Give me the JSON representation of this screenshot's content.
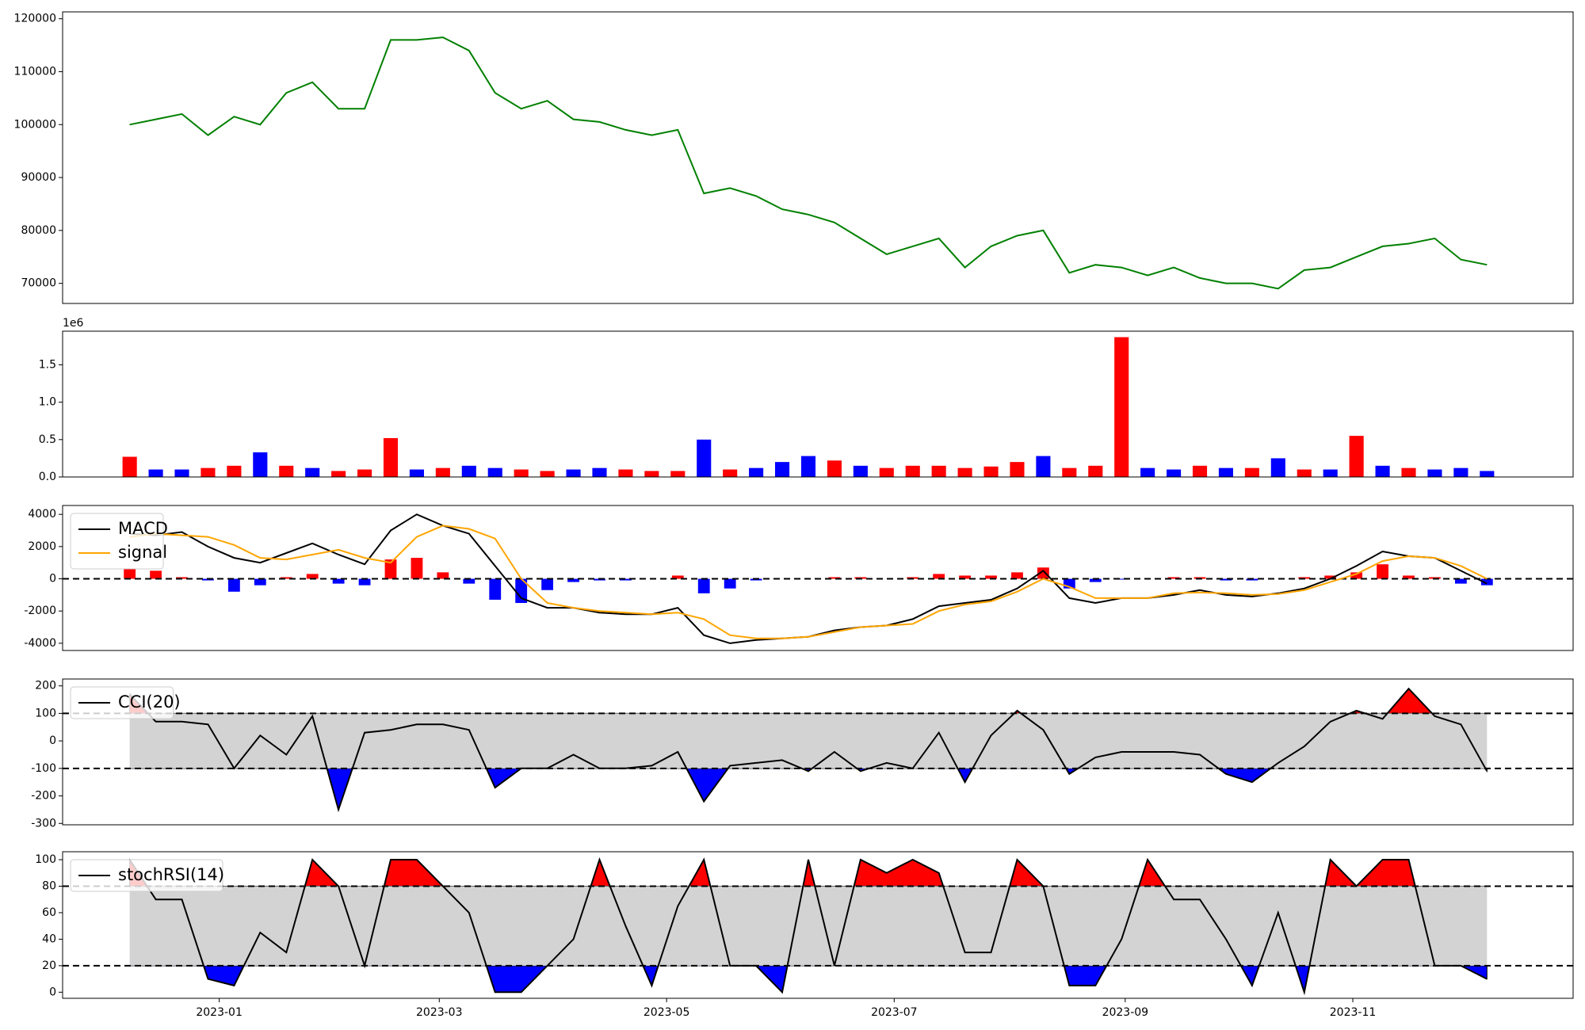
{
  "chart_data": [
    {
      "type": "line",
      "color": "#008000",
      "values": [
        100000,
        101000,
        102000,
        98000,
        101500,
        100000,
        106000,
        108000,
        103000,
        103000,
        116000,
        116000,
        116500,
        114000,
        106000,
        103000,
        104500,
        101000,
        100500,
        99000,
        98000,
        99000,
        87000,
        88000,
        86500,
        84000,
        83000,
        81500,
        78500,
        75500,
        77000,
        78500,
        73000,
        77000,
        79000,
        80000,
        72000,
        73500,
        73000,
        71500,
        73000,
        71000,
        70000,
        70000,
        69000,
        72500,
        73000,
        75000,
        77000,
        77500,
        78500,
        74500,
        73500
      ],
      "ylim": [
        66200,
        121300
      ],
      "yticks": [
        70000,
        80000,
        90000,
        100000,
        110000,
        120000
      ]
    },
    {
      "type": "bar",
      "offset_label": "1e6",
      "values": [
        0.27,
        0.1,
        0.1,
        0.12,
        0.15,
        0.33,
        0.15,
        0.12,
        0.08,
        0.1,
        0.52,
        0.1,
        0.12,
        0.15,
        0.12,
        0.1,
        0.08,
        0.1,
        0.12,
        0.1,
        0.08,
        0.08,
        0.5,
        0.1,
        0.12,
        0.2,
        0.28,
        0.22,
        0.15,
        0.12,
        0.15,
        0.15,
        0.12,
        0.14,
        0.2,
        0.28,
        0.12,
        0.15,
        1.87,
        0.12,
        0.1,
        0.15,
        0.12,
        0.12,
        0.25,
        0.1,
        0.1,
        0.55,
        0.15,
        0.12,
        0.1,
        0.12,
        0.08
      ],
      "colors": [
        "#ff0000",
        "#0000ff",
        "#0000ff",
        "#ff0000",
        "#ff0000",
        "#0000ff",
        "#ff0000",
        "#0000ff",
        "#ff0000",
        "#ff0000",
        "#ff0000",
        "#0000ff",
        "#ff0000",
        "#0000ff",
        "#0000ff",
        "#ff0000",
        "#ff0000",
        "#0000ff",
        "#0000ff",
        "#ff0000",
        "#ff0000",
        "#ff0000",
        "#0000ff",
        "#ff0000",
        "#0000ff",
        "#0000ff",
        "#0000ff",
        "#ff0000",
        "#0000ff",
        "#ff0000",
        "#ff0000",
        "#ff0000",
        "#ff0000",
        "#ff0000",
        "#ff0000",
        "#0000ff",
        "#ff0000",
        "#ff0000",
        "#ff0000",
        "#0000ff",
        "#0000ff",
        "#ff0000",
        "#0000ff",
        "#ff0000",
        "#0000ff",
        "#ff0000",
        "#0000ff",
        "#ff0000",
        "#0000ff",
        "#ff0000",
        "#0000ff",
        "#0000ff",
        "#0000ff"
      ],
      "ylim": [
        0,
        1.95
      ],
      "yticks": [
        {
          "value": 0,
          "label": "0.0"
        },
        {
          "value": 0.5,
          "label": "0.5"
        },
        {
          "value": 1,
          "label": "1.0"
        },
        {
          "value": 1.5,
          "label": "1.5"
        }
      ]
    },
    {
      "type": "macd",
      "legend": "upper left",
      "hline": 0,
      "series": [
        {
          "name": "MACD",
          "color": "#000000",
          "values": [
            2800,
            2700,
            2900,
            2000,
            1300,
            1000,
            1600,
            2200,
            1500,
            900,
            3000,
            4000,
            3300,
            2800,
            800,
            -1200,
            -1800,
            -1800,
            -2100,
            -2200,
            -2200,
            -1800,
            -3500,
            -4000,
            -3800,
            -3700,
            -3600,
            -3200,
            -3000,
            -2900,
            -2500,
            -1700,
            -1500,
            -1300,
            -600,
            500,
            -1200,
            -1500,
            -1200,
            -1200,
            -1000,
            -700,
            -1000,
            -1100,
            -900,
            -600,
            0,
            800,
            1700,
            1400,
            1300,
            500,
            -300
          ]
        },
        {
          "name": "signal",
          "color": "#ffa500",
          "values": [
            2600,
            2800,
            2700,
            2600,
            2100,
            1300,
            1200,
            1500,
            1800,
            1300,
            1000,
            2600,
            3300,
            3100,
            2500,
            0,
            -1500,
            -1800,
            -2000,
            -2100,
            -2200,
            -2100,
            -2500,
            -3500,
            -3700,
            -3700,
            -3600,
            -3300,
            -3000,
            -2900,
            -2800,
            -2000,
            -1600,
            -1400,
            -800,
            0,
            -500,
            -1200,
            -1200,
            -1200,
            -900,
            -850,
            -900,
            -1000,
            -950,
            -700,
            -200,
            300,
            1100,
            1400,
            1300,
            800,
            0
          ]
        }
      ],
      "histogram": {
        "pos_color": "#ff0000",
        "neg_color": "#0000ff",
        "values": [
          600,
          500,
          100,
          -100,
          -800,
          -400,
          100,
          300,
          -300,
          -400,
          1200,
          1300,
          400,
          -300,
          -1300,
          -1500,
          -700,
          -200,
          -100,
          -100,
          0,
          200,
          -900,
          -600,
          -100,
          0,
          0,
          100,
          100,
          0,
          100,
          300,
          200,
          200,
          400,
          700,
          -600,
          -200,
          -50,
          0,
          100,
          100,
          -100,
          -100,
          0,
          100,
          200,
          400,
          900,
          200,
          100,
          -300,
          -400
        ]
      },
      "ylim": [
        -4450,
        4550
      ],
      "yticks": [
        -4000,
        -2000,
        0,
        2000,
        4000
      ]
    },
    {
      "type": "oscillator",
      "legend": "upper left",
      "thresholds": [
        -100,
        100
      ],
      "band_color": "#d3d3d3",
      "over_color": "#ff0000",
      "under_color": "#0000ff",
      "series": [
        {
          "name": "CCI(20)",
          "color": "#000000",
          "values": [
            170,
            70,
            70,
            60,
            -100,
            20,
            -50,
            90,
            -250,
            30,
            40,
            60,
            60,
            40,
            -170,
            -100,
            -100,
            -50,
            -100,
            -100,
            -90,
            -40,
            -220,
            -90,
            -80,
            -70,
            -110,
            -40,
            -110,
            -80,
            -100,
            30,
            -150,
            20,
            110,
            40,
            -120,
            -60,
            -40,
            -40,
            -40,
            -50,
            -120,
            -150,
            -80,
            -20,
            70,
            110,
            80,
            190,
            90,
            60,
            -110
          ]
        }
      ],
      "ylim": [
        -305,
        225
      ],
      "yticks": [
        -300,
        -200,
        -100,
        0,
        100,
        200
      ]
    },
    {
      "type": "oscillator",
      "legend": "upper left",
      "thresholds": [
        20,
        80
      ],
      "band_color": "#d3d3d3",
      "over_color": "#ff0000",
      "under_color": "#0000ff",
      "series": [
        {
          "name": "stochRSI(14)",
          "color": "#000000",
          "values": [
            100,
            70,
            70,
            10,
            5,
            45,
            30,
            100,
            80,
            20,
            100,
            100,
            80,
            60,
            0,
            0,
            20,
            40,
            100,
            50,
            5,
            65,
            100,
            20,
            20,
            0,
            100,
            20,
            100,
            90,
            100,
            90,
            30,
            30,
            100,
            80,
            5,
            5,
            40,
            100,
            70,
            70,
            40,
            5,
            60,
            0,
            100,
            80,
            100,
            100,
            20,
            20,
            10
          ]
        }
      ],
      "ylim": [
        -4.6,
        106
      ],
      "yticks": [
        0,
        20,
        40,
        60,
        80,
        100
      ],
      "xlim": [
        -2.57,
        55.3
      ],
      "xticks": [
        {
          "value": 3.43,
          "label": "2023-01"
        },
        {
          "value": 11.86,
          "label": "2023-03"
        },
        {
          "value": 20.57,
          "label": "2023-05"
        },
        {
          "value": 29.29,
          "label": "2023-07"
        },
        {
          "value": 38.14,
          "label": "2023-09"
        },
        {
          "value": 46.86,
          "label": "2023-11"
        }
      ]
    }
  ]
}
